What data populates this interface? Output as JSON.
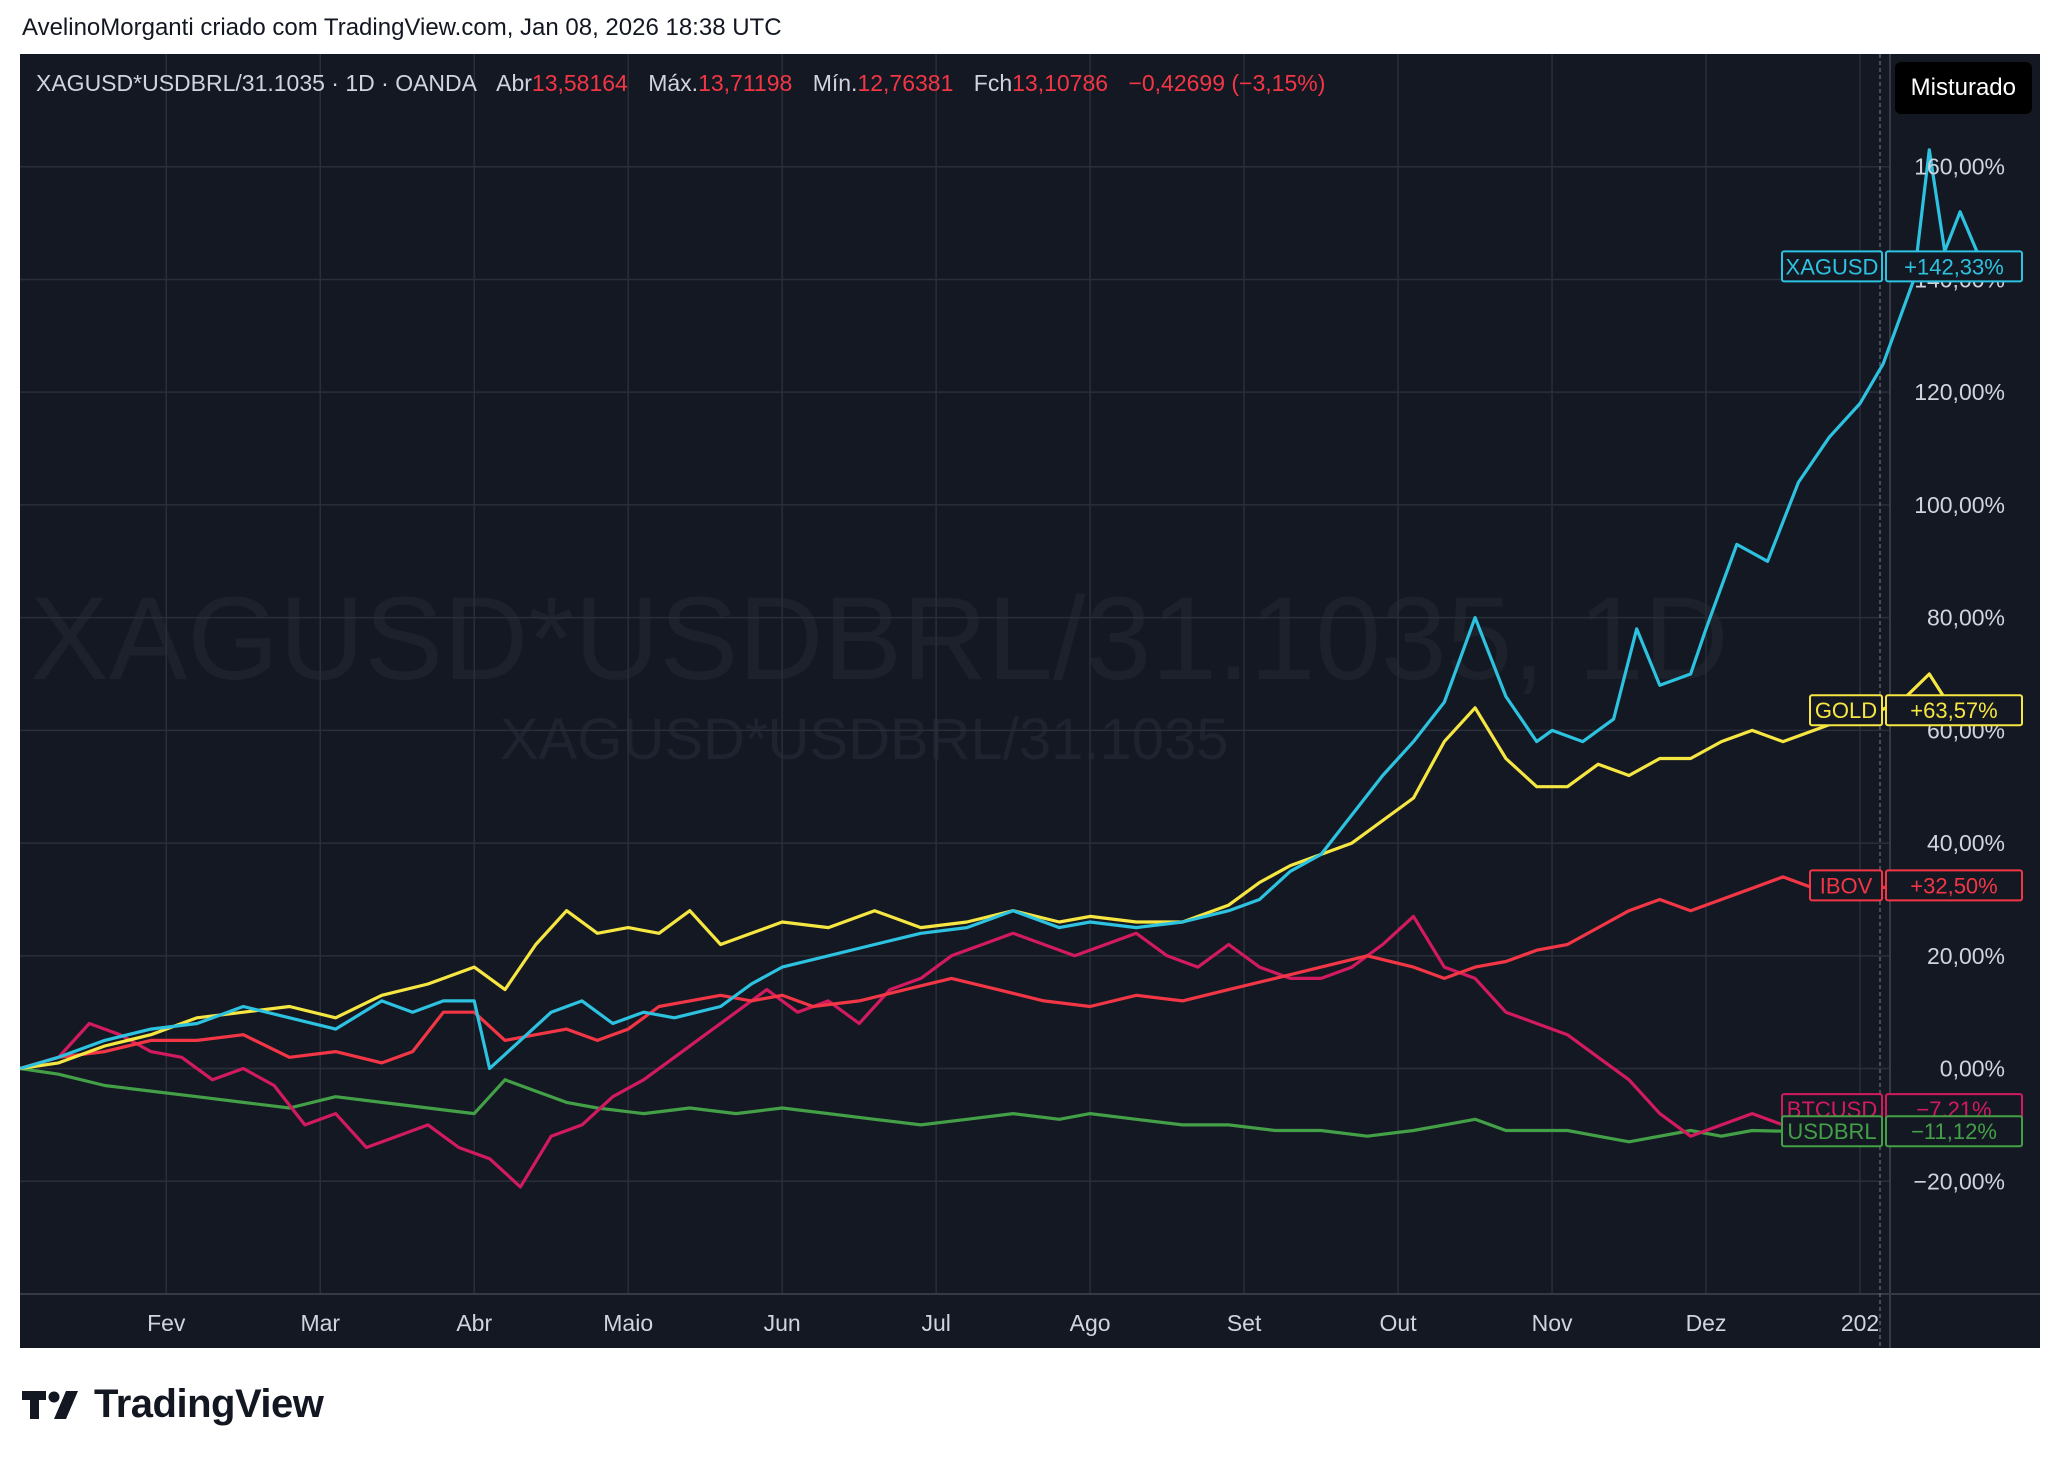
{
  "header": {
    "attribution": "AvelinoMorganti criado com TradingView.com, Jan 08, 2026 18:38 UTC"
  },
  "legend": {
    "symbol_info": "XAGUSD*USDBRL/31.1035 · 1D · OANDA",
    "open_label": "Abr",
    "open_value": "13,58164",
    "high_label": "Máx.",
    "high_value": "13,71198",
    "low_label": "Mín.",
    "low_value": "12,76381",
    "close_label": "Fch",
    "close_value": "13,10786",
    "change_value": "−0,42699 (−3,15%)"
  },
  "toolbar": {
    "mixed_label": "Misturado"
  },
  "watermark": {
    "main": "XAGUSD*USDBRL/31.1035, 1D",
    "sub": "XAGUSD*USDBRL/31.1035"
  },
  "brand": {
    "name": "TradingView"
  },
  "colors": {
    "background": "#141823",
    "grid": "#2a2e39",
    "axis_text": "#d1d4dc",
    "XAGUSD": "#2cc2e0",
    "GOLD": "#f5e642",
    "IBOV": "#f23645",
    "BTCUSD": "#d21a5f",
    "USDBRL": "#43a047"
  },
  "chart_data": {
    "type": "line",
    "x_axis": {
      "ticks": [
        "Fev",
        "Mar",
        "Abr",
        "Maio",
        "Jun",
        "Jul",
        "Ago",
        "Set",
        "Out",
        "Nov",
        "Dez",
        "202"
      ],
      "tick_months": [
        1.0,
        2.0,
        3.0,
        4.0,
        5.0,
        6.0,
        7.0,
        8.0,
        9.0,
        10.0,
        11.0,
        12.0
      ],
      "range_months": [
        0.05,
        12.0
      ]
    },
    "y_axis": {
      "unit": "%",
      "ticks": [
        "−20,00%",
        "0,00%",
        "20,00%",
        "40,00%",
        "60,00%",
        "80,00%",
        "100,00%",
        "120,00%",
        "140,00%",
        "160,00%"
      ],
      "tick_values": [
        -20,
        0,
        20,
        40,
        60,
        80,
        100,
        120,
        140,
        160
      ],
      "range": [
        -40,
        180
      ]
    },
    "grid": true,
    "series": [
      {
        "name": "XAGUSD",
        "last_label": "+142,33%",
        "last_value": 142.33,
        "points": [
          [
            0.05,
            0
          ],
          [
            0.3,
            2
          ],
          [
            0.6,
            5
          ],
          [
            0.9,
            7
          ],
          [
            1.2,
            8
          ],
          [
            1.5,
            11
          ],
          [
            1.8,
            9
          ],
          [
            2.1,
            7
          ],
          [
            2.4,
            12
          ],
          [
            2.6,
            10
          ],
          [
            2.8,
            12
          ],
          [
            3.0,
            12
          ],
          [
            3.1,
            0
          ],
          [
            3.3,
            5
          ],
          [
            3.5,
            10
          ],
          [
            3.7,
            12
          ],
          [
            3.9,
            8
          ],
          [
            4.1,
            10
          ],
          [
            4.3,
            9
          ],
          [
            4.6,
            11
          ],
          [
            4.8,
            15
          ],
          [
            5.0,
            18
          ],
          [
            5.3,
            20
          ],
          [
            5.6,
            22
          ],
          [
            5.9,
            24
          ],
          [
            6.2,
            25
          ],
          [
            6.5,
            28
          ],
          [
            6.8,
            25
          ],
          [
            7.0,
            26
          ],
          [
            7.3,
            25
          ],
          [
            7.6,
            26
          ],
          [
            7.9,
            28
          ],
          [
            8.1,
            30
          ],
          [
            8.3,
            35
          ],
          [
            8.5,
            38
          ],
          [
            8.7,
            45
          ],
          [
            8.9,
            52
          ],
          [
            9.1,
            58
          ],
          [
            9.3,
            65
          ],
          [
            9.5,
            80
          ],
          [
            9.7,
            66
          ],
          [
            9.9,
            58
          ],
          [
            10.0,
            60
          ],
          [
            10.2,
            58
          ],
          [
            10.4,
            62
          ],
          [
            10.55,
            78
          ],
          [
            10.7,
            68
          ],
          [
            10.9,
            70
          ],
          [
            11.0,
            78
          ],
          [
            11.2,
            93
          ],
          [
            11.4,
            90
          ],
          [
            11.6,
            104
          ],
          [
            11.8,
            112
          ],
          [
            12.0,
            118
          ],
          [
            12.15,
            125
          ],
          [
            12.35,
            140
          ],
          [
            12.45,
            163
          ],
          [
            12.55,
            145
          ],
          [
            12.65,
            152
          ],
          [
            12.8,
            142.33
          ]
        ]
      },
      {
        "name": "GOLD",
        "last_label": "+63,57%",
        "last_value": 63.57,
        "points": [
          [
            0.05,
            0
          ],
          [
            0.3,
            1
          ],
          [
            0.6,
            4
          ],
          [
            0.9,
            6
          ],
          [
            1.2,
            9
          ],
          [
            1.5,
            10
          ],
          [
            1.8,
            11
          ],
          [
            2.1,
            9
          ],
          [
            2.4,
            13
          ],
          [
            2.7,
            15
          ],
          [
            3.0,
            18
          ],
          [
            3.2,
            14
          ],
          [
            3.4,
            22
          ],
          [
            3.6,
            28
          ],
          [
            3.8,
            24
          ],
          [
            4.0,
            25
          ],
          [
            4.2,
            24
          ],
          [
            4.4,
            28
          ],
          [
            4.6,
            22
          ],
          [
            4.8,
            24
          ],
          [
            5.0,
            26
          ],
          [
            5.3,
            25
          ],
          [
            5.6,
            28
          ],
          [
            5.9,
            25
          ],
          [
            6.2,
            26
          ],
          [
            6.5,
            28
          ],
          [
            6.8,
            26
          ],
          [
            7.0,
            27
          ],
          [
            7.3,
            26
          ],
          [
            7.6,
            26
          ],
          [
            7.9,
            29
          ],
          [
            8.1,
            33
          ],
          [
            8.3,
            36
          ],
          [
            8.5,
            38
          ],
          [
            8.7,
            40
          ],
          [
            8.9,
            44
          ],
          [
            9.1,
            48
          ],
          [
            9.3,
            58
          ],
          [
            9.5,
            64
          ],
          [
            9.7,
            55
          ],
          [
            9.9,
            50
          ],
          [
            10.1,
            50
          ],
          [
            10.3,
            54
          ],
          [
            10.5,
            52
          ],
          [
            10.7,
            55
          ],
          [
            10.9,
            55
          ],
          [
            11.1,
            58
          ],
          [
            11.3,
            60
          ],
          [
            11.5,
            58
          ],
          [
            11.7,
            60
          ],
          [
            11.9,
            62
          ],
          [
            12.1,
            63
          ],
          [
            12.3,
            66
          ],
          [
            12.45,
            70
          ],
          [
            12.6,
            63.57
          ]
        ]
      },
      {
        "name": "IBOV",
        "last_label": "+32,50%",
        "last_value": 32.5,
        "points": [
          [
            0.05,
            0
          ],
          [
            0.3,
            2
          ],
          [
            0.6,
            3
          ],
          [
            0.9,
            5
          ],
          [
            1.2,
            5
          ],
          [
            1.5,
            6
          ],
          [
            1.8,
            2
          ],
          [
            2.1,
            3
          ],
          [
            2.4,
            1
          ],
          [
            2.6,
            3
          ],
          [
            2.8,
            10
          ],
          [
            3.0,
            10
          ],
          [
            3.2,
            5
          ],
          [
            3.4,
            6
          ],
          [
            3.6,
            7
          ],
          [
            3.8,
            5
          ],
          [
            4.0,
            7
          ],
          [
            4.2,
            11
          ],
          [
            4.4,
            12
          ],
          [
            4.6,
            13
          ],
          [
            4.8,
            12
          ],
          [
            5.0,
            13
          ],
          [
            5.2,
            11
          ],
          [
            5.5,
            12
          ],
          [
            5.8,
            14
          ],
          [
            6.1,
            16
          ],
          [
            6.4,
            14
          ],
          [
            6.7,
            12
          ],
          [
            7.0,
            11
          ],
          [
            7.3,
            13
          ],
          [
            7.6,
            12
          ],
          [
            7.9,
            14
          ],
          [
            8.2,
            16
          ],
          [
            8.5,
            18
          ],
          [
            8.8,
            20
          ],
          [
            9.1,
            18
          ],
          [
            9.3,
            16
          ],
          [
            9.5,
            18
          ],
          [
            9.7,
            19
          ],
          [
            9.9,
            21
          ],
          [
            10.1,
            22
          ],
          [
            10.3,
            25
          ],
          [
            10.5,
            28
          ],
          [
            10.7,
            30
          ],
          [
            10.9,
            28
          ],
          [
            11.1,
            30
          ],
          [
            11.3,
            32
          ],
          [
            11.5,
            34
          ],
          [
            11.7,
            32
          ],
          [
            11.9,
            33
          ],
          [
            12.1,
            32
          ],
          [
            12.3,
            32.5
          ]
        ]
      },
      {
        "name": "BTCUSD",
        "last_label": "−7,21%",
        "last_value": -7.21,
        "points": [
          [
            0.05,
            0
          ],
          [
            0.3,
            2
          ],
          [
            0.5,
            8
          ],
          [
            0.7,
            6
          ],
          [
            0.9,
            3
          ],
          [
            1.1,
            2
          ],
          [
            1.3,
            -2
          ],
          [
            1.5,
            0
          ],
          [
            1.7,
            -3
          ],
          [
            1.9,
            -10
          ],
          [
            2.1,
            -8
          ],
          [
            2.3,
            -14
          ],
          [
            2.5,
            -12
          ],
          [
            2.7,
            -10
          ],
          [
            2.9,
            -14
          ],
          [
            3.1,
            -16
          ],
          [
            3.3,
            -21
          ],
          [
            3.5,
            -12
          ],
          [
            3.7,
            -10
          ],
          [
            3.9,
            -5
          ],
          [
            4.1,
            -2
          ],
          [
            4.3,
            2
          ],
          [
            4.5,
            6
          ],
          [
            4.7,
            10
          ],
          [
            4.9,
            14
          ],
          [
            5.1,
            10
          ],
          [
            5.3,
            12
          ],
          [
            5.5,
            8
          ],
          [
            5.7,
            14
          ],
          [
            5.9,
            16
          ],
          [
            6.1,
            20
          ],
          [
            6.3,
            22
          ],
          [
            6.5,
            24
          ],
          [
            6.7,
            22
          ],
          [
            6.9,
            20
          ],
          [
            7.1,
            22
          ],
          [
            7.3,
            24
          ],
          [
            7.5,
            20
          ],
          [
            7.7,
            18
          ],
          [
            7.9,
            22
          ],
          [
            8.1,
            18
          ],
          [
            8.3,
            16
          ],
          [
            8.5,
            16
          ],
          [
            8.7,
            18
          ],
          [
            8.9,
            22
          ],
          [
            9.1,
            27
          ],
          [
            9.3,
            18
          ],
          [
            9.5,
            16
          ],
          [
            9.7,
            10
          ],
          [
            9.9,
            8
          ],
          [
            10.1,
            6
          ],
          [
            10.3,
            2
          ],
          [
            10.5,
            -2
          ],
          [
            10.7,
            -8
          ],
          [
            10.9,
            -12
          ],
          [
            11.1,
            -10
          ],
          [
            11.3,
            -8
          ],
          [
            11.5,
            -10
          ],
          [
            11.7,
            -7.21
          ]
        ]
      },
      {
        "name": "USDBRL",
        "last_label": "−11,12%",
        "last_value": -11.12,
        "points": [
          [
            0.05,
            0
          ],
          [
            0.3,
            -1
          ],
          [
            0.6,
            -3
          ],
          [
            0.9,
            -4
          ],
          [
            1.2,
            -5
          ],
          [
            1.5,
            -6
          ],
          [
            1.8,
            -7
          ],
          [
            2.1,
            -5
          ],
          [
            2.4,
            -6
          ],
          [
            2.7,
            -7
          ],
          [
            3.0,
            -8
          ],
          [
            3.2,
            -2
          ],
          [
            3.4,
            -4
          ],
          [
            3.6,
            -6
          ],
          [
            3.8,
            -7
          ],
          [
            4.1,
            -8
          ],
          [
            4.4,
            -7
          ],
          [
            4.7,
            -8
          ],
          [
            5.0,
            -7
          ],
          [
            5.3,
            -8
          ],
          [
            5.6,
            -9
          ],
          [
            5.9,
            -10
          ],
          [
            6.2,
            -9
          ],
          [
            6.5,
            -8
          ],
          [
            6.8,
            -9
          ],
          [
            7.0,
            -8
          ],
          [
            7.3,
            -9
          ],
          [
            7.6,
            -10
          ],
          [
            7.9,
            -10
          ],
          [
            8.2,
            -11
          ],
          [
            8.5,
            -11
          ],
          [
            8.8,
            -12
          ],
          [
            9.1,
            -11
          ],
          [
            9.3,
            -10
          ],
          [
            9.5,
            -9
          ],
          [
            9.7,
            -11
          ],
          [
            9.9,
            -11
          ],
          [
            10.1,
            -11
          ],
          [
            10.3,
            -12
          ],
          [
            10.5,
            -13
          ],
          [
            10.7,
            -12
          ],
          [
            10.9,
            -11
          ],
          [
            11.1,
            -12
          ],
          [
            11.3,
            -11
          ],
          [
            11.5,
            -11.12
          ]
        ]
      }
    ]
  }
}
